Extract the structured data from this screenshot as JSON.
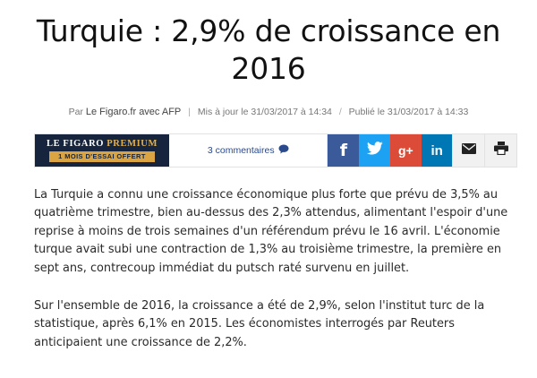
{
  "article": {
    "title": "Turquie : 2,9% de croissance en 2016",
    "byline": {
      "prefix": "Par",
      "source": "Le Figaro.fr avec AFP",
      "updated": "Mis à jour le 31/03/2017 à 14:34",
      "published": "Publié le 31/03/2017 à 14:33"
    },
    "paragraphs": [
      "La Turquie a connu une croissance économique plus forte que prévu de 3,5% au quatrième trimestre, bien au-dessus des 2,3% attendus, alimentant l'espoir d'une reprise à moins de trois semaines d'un référendum prévu le 16 avril. L'économie turque avait subi une contraction de 1,3% au troisième trimestre, la première en sept ans, contrecoup immédiat du putsch raté survenu en juillet.",
      "Sur l'ensemble de 2016, la croissance a été de 2,9%, selon l'institut turc de la statistique, après 6,1% en 2015. Les économistes interrogés par Reuters anticipaient une croissance de 2,2%."
    ]
  },
  "sharebar": {
    "premium": {
      "brand": "LE FIGARO",
      "brand_suffix": "PREMIUM",
      "offer": "1 MOIS D'ESSAI OFFERT"
    },
    "comments_label": "3 commentaires",
    "buttons": [
      {
        "name": "facebook",
        "glyph": "f",
        "color": "#3b5a9a"
      },
      {
        "name": "twitter",
        "glyph": "",
        "color": "#1da1f2"
      },
      {
        "name": "google-plus",
        "glyph": "g+",
        "color": "#dc4b38"
      },
      {
        "name": "linkedin",
        "glyph": "in",
        "color": "#0077b5"
      },
      {
        "name": "email",
        "glyph": "",
        "color": "#f1f1f1"
      },
      {
        "name": "print",
        "glyph": "",
        "color": "#f1f1f1"
      }
    ]
  },
  "icons": [
    "comment-bubble-icon",
    "facebook-icon",
    "twitter-icon",
    "google-plus-icon",
    "linkedin-icon",
    "envelope-icon",
    "printer-icon"
  ]
}
